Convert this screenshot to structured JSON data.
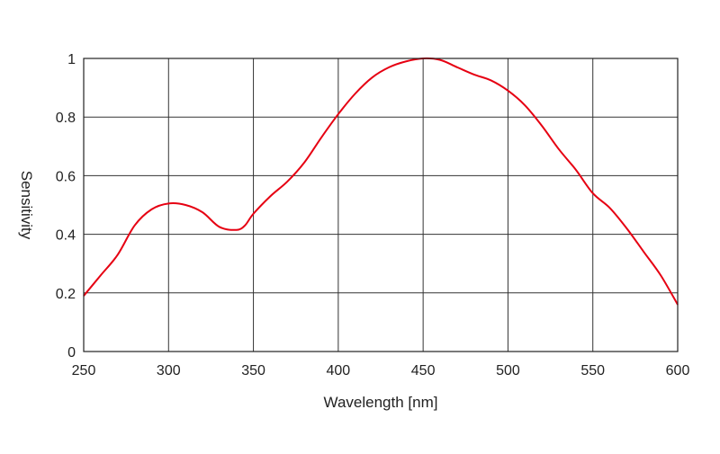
{
  "chart_data": {
    "type": "line",
    "title": "",
    "xlabel": "Wavelength [nm]",
    "ylabel": "Sensitivity",
    "xlim": [
      250,
      600
    ],
    "ylim": [
      0,
      1
    ],
    "xticks": [
      250,
      300,
      350,
      400,
      450,
      500,
      550,
      600
    ],
    "yticks": [
      0,
      0.2,
      0.4,
      0.6,
      0.8,
      1
    ],
    "ytick_labels": [
      "0",
      "0.2",
      "0.4",
      "0.6",
      "0.8",
      "1"
    ],
    "grid": true,
    "legend": "none",
    "series": [
      {
        "color": "#e60012",
        "x": [
          250,
          260,
          270,
          280,
          290,
          300,
          310,
          320,
          330,
          340,
          345,
          350,
          360,
          370,
          380,
          390,
          400,
          410,
          420,
          430,
          440,
          450,
          460,
          470,
          480,
          490,
          500,
          510,
          520,
          530,
          540,
          550,
          560,
          570,
          580,
          590,
          600
        ],
        "y": [
          0.19,
          0.26,
          0.33,
          0.43,
          0.485,
          0.505,
          0.5,
          0.475,
          0.425,
          0.415,
          0.43,
          0.47,
          0.53,
          0.58,
          0.645,
          0.73,
          0.81,
          0.88,
          0.935,
          0.97,
          0.99,
          1.0,
          0.995,
          0.97,
          0.945,
          0.925,
          0.89,
          0.84,
          0.77,
          0.69,
          0.62,
          0.54,
          0.49,
          0.42,
          0.34,
          0.26,
          0.16
        ]
      }
    ]
  }
}
